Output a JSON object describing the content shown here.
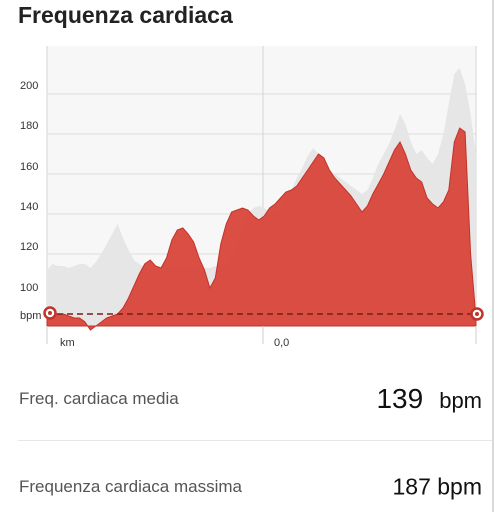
{
  "header": {
    "title": "Frequenza cardiaca"
  },
  "chart_data": {
    "type": "area",
    "y_ticks": [
      "200",
      "180",
      "160",
      "140",
      "120",
      "100"
    ],
    "y_unit_label": "bpm",
    "x_unit_label": "km",
    "x_tick_label": "0,0",
    "ylim": [
      84,
      224
    ],
    "reference_line": 90,
    "colors": {
      "fill": "#d9443a",
      "stroke": "#c23329",
      "background_area": "#e6e6e6",
      "marker": "#c23329"
    },
    "series": [
      {
        "values": [
          89,
          90,
          90,
          90,
          89,
          88,
          88,
          86,
          82,
          84,
          86,
          88,
          89,
          90,
          93,
          98,
          104,
          110,
          115,
          117,
          114,
          113,
          118,
          127,
          132,
          133,
          130,
          126,
          118,
          112,
          103,
          108,
          125,
          135,
          141,
          142,
          143,
          142,
          139,
          137,
          139,
          143,
          145,
          148,
          151,
          152,
          154,
          158,
          162,
          166,
          170,
          168,
          162,
          158,
          155,
          152,
          149,
          145,
          141,
          144,
          150,
          155,
          160,
          166,
          172,
          176,
          170,
          162,
          158,
          156,
          148,
          145,
          143,
          146,
          152,
          176,
          183,
          181,
          120,
          88
        ]
      },
      {
        "values": [
          112,
          115,
          114,
          114,
          113,
          114,
          115,
          115,
          113,
          116,
          120,
          125,
          130,
          135,
          128,
          122,
          117,
          115,
          113,
          112,
          112,
          112,
          113,
          113,
          114,
          114,
          114,
          113,
          113,
          113,
          113,
          114,
          114,
          115,
          118,
          124,
          133,
          140,
          143,
          144,
          143,
          141,
          140,
          142,
          147,
          152,
          158,
          163,
          169,
          173,
          170,
          166,
          162,
          160,
          158,
          156,
          154,
          152,
          150,
          152,
          158,
          165,
          170,
          175,
          182,
          190,
          185,
          176,
          170,
          172,
          168,
          165,
          170,
          180,
          195,
          210,
          213,
          205,
          190,
          170
        ]
      }
    ]
  },
  "stats": [
    {
      "label": "Freq. cardiaca media",
      "value": "139",
      "unit": "bpm"
    },
    {
      "label": "Frequenza cardiaca massima",
      "value": "187 bpm"
    }
  ]
}
